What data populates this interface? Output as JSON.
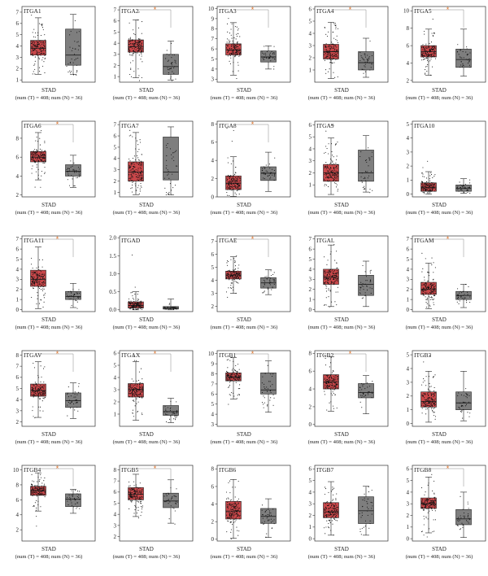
{
  "figure": {
    "cancer": "STAD",
    "sample_label": "(num (T) = 408; num (N) = 36)",
    "sig_mark": "*",
    "colors": {
      "tumor": "#c9474a",
      "normal": "#7e7e7e",
      "sig": "#e0732a",
      "dot": "#111111"
    }
  },
  "chart_data": [
    {
      "type": "box",
      "title": "ITGA1",
      "ylim": [
        0.8,
        7.5
      ],
      "yticks": [
        1,
        2,
        3,
        4,
        5,
        6,
        7
      ],
      "sig": false,
      "series": [
        {
          "name": "T",
          "q1": 3.2,
          "median": 3.8,
          "q3": 4.5,
          "whislo": 1.5,
          "whishi": 6.5,
          "min": 1.0,
          "max": 7.2
        },
        {
          "name": "N",
          "q1": 2.3,
          "median": 3.2,
          "q3": 5.5,
          "whislo": 1.5,
          "whishi": 6.8,
          "min": 1.4,
          "max": 7.0
        }
      ]
    },
    {
      "type": "box",
      "title": "ITGA2",
      "ylim": [
        0.5,
        7.3
      ],
      "yticks": [
        1,
        2,
        3,
        4,
        5,
        6,
        7
      ],
      "sig": true,
      "series": [
        {
          "name": "T",
          "q1": 3.2,
          "median": 3.7,
          "q3": 4.3,
          "whislo": 0.9,
          "whishi": 6.1,
          "min": 0.6,
          "max": 7.0
        },
        {
          "name": "N",
          "q1": 1.2,
          "median": 1.9,
          "q3": 3.0,
          "whislo": 0.7,
          "whishi": 4.2,
          "min": 0.6,
          "max": 4.3
        }
      ]
    },
    {
      "type": "box",
      "title": "ITGA3",
      "ylim": [
        2.7,
        10.2
      ],
      "yticks": [
        3,
        4,
        5,
        6,
        7,
        8,
        9,
        10
      ],
      "sig": true,
      "series": [
        {
          "name": "T",
          "q1": 5.4,
          "median": 5.9,
          "q3": 6.5,
          "whislo": 3.4,
          "whishi": 8.6,
          "min": 3.0,
          "max": 10.0
        },
        {
          "name": "N",
          "q1": 4.7,
          "median": 5.2,
          "q3": 5.8,
          "whislo": 4.0,
          "whishi": 6.3,
          "min": 3.7,
          "max": 6.4
        }
      ]
    },
    {
      "type": "box",
      "title": "ITGA4",
      "ylim": [
        0,
        6.2
      ],
      "yticks": [
        1,
        2,
        3,
        4,
        5,
        6
      ],
      "sig": true,
      "series": [
        {
          "name": "T",
          "q1": 1.9,
          "median": 2.5,
          "q3": 3.1,
          "whislo": 0.3,
          "whishi": 4.9,
          "min": 0.1,
          "max": 5.9
        },
        {
          "name": "N",
          "q1": 1.0,
          "median": 1.6,
          "q3": 2.5,
          "whislo": 0.4,
          "whishi": 3.6,
          "min": 0.3,
          "max": 3.9
        }
      ]
    },
    {
      "type": "box",
      "title": "ITGA5",
      "ylim": [
        1.8,
        10.5
      ],
      "yticks": [
        2,
        4,
        6,
        8,
        10
      ],
      "sig": true,
      "series": [
        {
          "name": "T",
          "q1": 4.7,
          "median": 5.3,
          "q3": 6.0,
          "whislo": 2.6,
          "whishi": 7.9,
          "min": 2.2,
          "max": 9.5
        },
        {
          "name": "N",
          "q1": 3.5,
          "median": 4.4,
          "q3": 5.6,
          "whislo": 2.5,
          "whishi": 7.9,
          "min": 2.4,
          "max": 8.0
        }
      ]
    },
    {
      "type": "box",
      "title": "ITGA6",
      "ylim": [
        1.8,
        9.8
      ],
      "yticks": [
        2,
        4,
        6,
        8
      ],
      "sig": true,
      "series": [
        {
          "name": "T",
          "q1": 5.5,
          "median": 6.0,
          "q3": 6.6,
          "whislo": 3.6,
          "whishi": 8.6,
          "min": 2.5,
          "max": 9.1
        },
        {
          "name": "N",
          "q1": 4.0,
          "median": 4.5,
          "q3": 5.2,
          "whislo": 2.8,
          "whishi": 6.2,
          "min": 2.6,
          "max": 6.3
        }
      ]
    },
    {
      "type": "box",
      "title": "ITGA7",
      "ylim": [
        0.6,
        7.3
      ],
      "yticks": [
        1,
        2,
        3,
        4,
        5,
        6,
        7
      ],
      "sig": false,
      "series": [
        {
          "name": "T",
          "q1": 2.0,
          "median": 2.8,
          "q3": 3.7,
          "whislo": 0.8,
          "whishi": 6.3,
          "min": 0.7,
          "max": 7.0
        },
        {
          "name": "N",
          "q1": 2.1,
          "median": 2.8,
          "q3": 5.9,
          "whislo": 0.8,
          "whishi": 6.8,
          "min": 0.7,
          "max": 6.8
        }
      ]
    },
    {
      "type": "box",
      "title": "ITGA8",
      "ylim": [
        0,
        8.3
      ],
      "yticks": [
        0,
        2,
        4,
        6,
        8
      ],
      "sig": true,
      "series": [
        {
          "name": "T",
          "q1": 0.8,
          "median": 1.5,
          "q3": 2.3,
          "whislo": 0.05,
          "whishi": 4.4,
          "min": 0.0,
          "max": 7.8
        },
        {
          "name": "N",
          "q1": 1.8,
          "median": 2.6,
          "q3": 3.3,
          "whislo": 0.6,
          "whishi": 4.9,
          "min": 0.5,
          "max": 5.0
        }
      ]
    },
    {
      "type": "box",
      "title": "ITGA9",
      "ylim": [
        0,
        6.3
      ],
      "yticks": [
        1,
        2,
        3,
        4,
        5,
        6
      ],
      "sig": false,
      "series": [
        {
          "name": "T",
          "q1": 1.3,
          "median": 2.0,
          "q3": 2.7,
          "whislo": 0.2,
          "whishi": 4.9,
          "min": 0.1,
          "max": 6.1
        },
        {
          "name": "N",
          "q1": 1.3,
          "median": 2.0,
          "q3": 3.9,
          "whislo": 0.4,
          "whishi": 5.1,
          "min": 0.3,
          "max": 5.1
        }
      ]
    },
    {
      "type": "box",
      "title": "ITGA10",
      "ylim": [
        -0.2,
        5.2
      ],
      "yticks": [
        0,
        1,
        2,
        3,
        4,
        5
      ],
      "sig": false,
      "series": [
        {
          "name": "T",
          "q1": 0.2,
          "median": 0.45,
          "q3": 0.8,
          "whislo": 0.0,
          "whishi": 1.6,
          "min": 0.0,
          "max": 2.9
        },
        {
          "name": "N",
          "q1": 0.2,
          "median": 0.4,
          "q3": 0.65,
          "whislo": 0.05,
          "whishi": 1.1,
          "min": 0.05,
          "max": 1.1
        }
      ]
    },
    {
      "type": "box",
      "title": "ITGA11",
      "ylim": [
        -0.2,
        7.3
      ],
      "yticks": [
        0,
        1,
        2,
        3,
        4,
        5,
        6,
        7
      ],
      "sig": true,
      "series": [
        {
          "name": "T",
          "q1": 2.3,
          "median": 3.0,
          "q3": 3.9,
          "whislo": 0.1,
          "whishi": 6.2,
          "min": 0.0,
          "max": 7.0
        },
        {
          "name": "N",
          "q1": 1.0,
          "median": 1.3,
          "q3": 1.8,
          "whislo": 0.2,
          "whishi": 2.6,
          "min": 0.1,
          "max": 2.7
        }
      ]
    },
    {
      "type": "box",
      "title": "ITGAD",
      "ylim": [
        -0.05,
        2.05
      ],
      "yticks": [
        0.0,
        0.5,
        1.0,
        1.5,
        2.0
      ],
      "sig": false,
      "series": [
        {
          "name": "T",
          "q1": 0.05,
          "median": 0.12,
          "q3": 0.22,
          "whislo": 0.0,
          "whishi": 0.5,
          "min": 0.0,
          "max": 1.78
        },
        {
          "name": "N",
          "q1": 0.02,
          "median": 0.05,
          "q3": 0.09,
          "whislo": 0.0,
          "whishi": 0.3,
          "min": 0.0,
          "max": 0.45
        }
      ]
    },
    {
      "type": "box",
      "title": "ITGAE",
      "ylim": [
        1.6,
        7.4
      ],
      "yticks": [
        2,
        3,
        4,
        5,
        6,
        7
      ],
      "sig": true,
      "series": [
        {
          "name": "T",
          "q1": 4.1,
          "median": 4.4,
          "q3": 4.7,
          "whislo": 3.0,
          "whishi": 5.8,
          "min": 2.5,
          "max": 7.0
        },
        {
          "name": "N",
          "q1": 3.4,
          "median": 3.8,
          "q3": 4.2,
          "whislo": 2.9,
          "whishi": 4.8,
          "min": 2.8,
          "max": 4.8
        }
      ]
    },
    {
      "type": "box",
      "title": "ITGAL",
      "ylim": [
        -0.2,
        7.3
      ],
      "yticks": [
        0,
        1,
        2,
        3,
        4,
        5,
        6,
        7
      ],
      "sig": false,
      "series": [
        {
          "name": "T",
          "q1": 2.5,
          "median": 3.2,
          "q3": 4.0,
          "whislo": 0.3,
          "whishi": 6.4,
          "min": 0.1,
          "max": 7.0
        },
        {
          "name": "N",
          "q1": 1.4,
          "median": 2.5,
          "q3": 3.4,
          "whislo": 0.3,
          "whishi": 4.8,
          "min": 0.2,
          "max": 4.9
        }
      ]
    },
    {
      "type": "box",
      "title": "ITGAM",
      "ylim": [
        -0.2,
        7.3
      ],
      "yticks": [
        0,
        1,
        2,
        3,
        4,
        5,
        6,
        7
      ],
      "sig": true,
      "series": [
        {
          "name": "T",
          "q1": 1.5,
          "median": 2.0,
          "q3": 2.7,
          "whislo": 0.1,
          "whishi": 4.6,
          "min": 0.0,
          "max": 6.2
        },
        {
          "name": "N",
          "q1": 1.0,
          "median": 1.4,
          "q3": 1.8,
          "whislo": 0.2,
          "whishi": 2.5,
          "min": 0.1,
          "max": 2.6
        }
      ]
    },
    {
      "type": "box",
      "title": "ITGAV",
      "ylim": [
        1.6,
        8.4
      ],
      "yticks": [
        2,
        3,
        4,
        5,
        6,
        7,
        8
      ],
      "sig": true,
      "series": [
        {
          "name": "T",
          "q1": 4.3,
          "median": 4.8,
          "q3": 5.4,
          "whislo": 2.4,
          "whishi": 7.4,
          "min": 2.3,
          "max": 8.0
        },
        {
          "name": "N",
          "q1": 3.3,
          "median": 3.9,
          "q3": 4.6,
          "whislo": 2.3,
          "whishi": 5.5,
          "min": 2.2,
          "max": 5.6
        }
      ]
    },
    {
      "type": "box",
      "title": "ITGAX",
      "ylim": [
        0,
        6.2
      ],
      "yticks": [
        1,
        2,
        3,
        4,
        5,
        6
      ],
      "sig": true,
      "series": [
        {
          "name": "T",
          "q1": 2.4,
          "median": 3.0,
          "q3": 3.5,
          "whislo": 0.5,
          "whishi": 5.3,
          "min": 0.3,
          "max": 5.9
        },
        {
          "name": "N",
          "q1": 0.9,
          "median": 1.2,
          "q3": 1.7,
          "whislo": 0.3,
          "whishi": 2.3,
          "min": 0.2,
          "max": 2.4
        }
      ]
    },
    {
      "type": "box",
      "title": "ITGB1",
      "ylim": [
        2.8,
        10.3
      ],
      "yticks": [
        3,
        4,
        5,
        6,
        7,
        8,
        9,
        10
      ],
      "sig": true,
      "series": [
        {
          "name": "T",
          "q1": 7.3,
          "median": 7.7,
          "q3": 8.1,
          "whislo": 5.5,
          "whishi": 9.6,
          "min": 4.4,
          "max": 10.0
        },
        {
          "name": "N",
          "q1": 6.0,
          "median": 6.4,
          "q3": 8.1,
          "whislo": 4.2,
          "whishi": 9.3,
          "min": 3.9,
          "max": 9.3
        }
      ]
    },
    {
      "type": "box",
      "title": "ITGB2",
      "ylim": [
        -0.2,
        8.3
      ],
      "yticks": [
        0,
        2,
        4,
        6,
        8
      ],
      "sig": true,
      "series": [
        {
          "name": "T",
          "q1": 4.0,
          "median": 4.8,
          "q3": 5.6,
          "whislo": 1.5,
          "whishi": 7.6,
          "min": 1.0,
          "max": 8.0
        },
        {
          "name": "N",
          "q1": 3.0,
          "median": 3.6,
          "q3": 4.6,
          "whislo": 1.2,
          "whishi": 5.5,
          "min": 1.0,
          "max": 5.6
        }
      ]
    },
    {
      "type": "box",
      "title": "ITGB3",
      "ylim": [
        -0.2,
        5.3
      ],
      "yticks": [
        0,
        1,
        2,
        3,
        4,
        5
      ],
      "sig": false,
      "series": [
        {
          "name": "T",
          "q1": 1.2,
          "median": 1.6,
          "q3": 2.3,
          "whislo": 0.1,
          "whishi": 3.8,
          "min": 0.0,
          "max": 5.0
        },
        {
          "name": "N",
          "q1": 1.0,
          "median": 1.5,
          "q3": 2.3,
          "whislo": 0.2,
          "whishi": 3.8,
          "min": 0.2,
          "max": 3.9
        }
      ]
    },
    {
      "type": "box",
      "title": "ITGB4",
      "ylim": [
        0.5,
        10.6
      ],
      "yticks": [
        2,
        4,
        6,
        8,
        10
      ],
      "sig": true,
      "series": [
        {
          "name": "T",
          "q1": 6.6,
          "median": 7.2,
          "q3": 7.8,
          "whislo": 4.5,
          "whishi": 9.6,
          "min": 1.0,
          "max": 10.2
        },
        {
          "name": "N",
          "q1": 5.1,
          "median": 6.1,
          "q3": 6.8,
          "whislo": 4.2,
          "whishi": 7.4,
          "min": 4.2,
          "max": 7.5
        }
      ]
    },
    {
      "type": "box",
      "title": "ITGB5",
      "ylim": [
        1.6,
        8.4
      ],
      "yticks": [
        2,
        3,
        4,
        5,
        6,
        7,
        8
      ],
      "sig": true,
      "series": [
        {
          "name": "T",
          "q1": 5.3,
          "median": 5.8,
          "q3": 6.4,
          "whislo": 3.8,
          "whishi": 7.6,
          "min": 3.0,
          "max": 8.0
        },
        {
          "name": "N",
          "q1": 4.6,
          "median": 5.2,
          "q3": 5.9,
          "whislo": 3.2,
          "whishi": 7.1,
          "min": 3.1,
          "max": 7.2
        }
      ]
    },
    {
      "type": "box",
      "title": "ITGB6",
      "ylim": [
        -0.2,
        8.4
      ],
      "yticks": [
        0,
        2,
        4,
        6,
        8
      ],
      "sig": false,
      "series": [
        {
          "name": "T",
          "q1": 2.3,
          "median": 3.2,
          "q3": 4.3,
          "whislo": 0.1,
          "whishi": 6.8,
          "min": 0.0,
          "max": 8.0
        },
        {
          "name": "N",
          "q1": 1.8,
          "median": 2.6,
          "q3": 3.5,
          "whislo": 0.2,
          "whishi": 4.6,
          "min": 0.1,
          "max": 4.7
        }
      ]
    },
    {
      "type": "box",
      "title": "ITGB7",
      "ylim": [
        -0.2,
        6.3
      ],
      "yticks": [
        0,
        1,
        2,
        3,
        4,
        5,
        6
      ],
      "sig": false,
      "series": [
        {
          "name": "T",
          "q1": 1.8,
          "median": 2.3,
          "q3": 3.1,
          "whislo": 0.3,
          "whishi": 4.9,
          "min": 0.2,
          "max": 5.7
        },
        {
          "name": "N",
          "q1": 1.3,
          "median": 2.4,
          "q3": 3.6,
          "whislo": 0.3,
          "whishi": 4.5,
          "min": 0.3,
          "max": 4.6
        }
      ]
    },
    {
      "type": "box",
      "title": "ITGB8",
      "ylim": [
        -0.2,
        6.3
      ],
      "yticks": [
        0,
        1,
        2,
        3,
        4,
        5,
        6
      ],
      "sig": true,
      "series": [
        {
          "name": "T",
          "q1": 2.6,
          "median": 3.0,
          "q3": 3.5,
          "whislo": 0.5,
          "whishi": 5.3,
          "min": 0.0,
          "max": 6.0
        },
        {
          "name": "N",
          "q1": 1.2,
          "median": 1.7,
          "q3": 2.5,
          "whislo": 0.1,
          "whishi": 4.0,
          "min": 0.0,
          "max": 4.1
        }
      ]
    }
  ]
}
